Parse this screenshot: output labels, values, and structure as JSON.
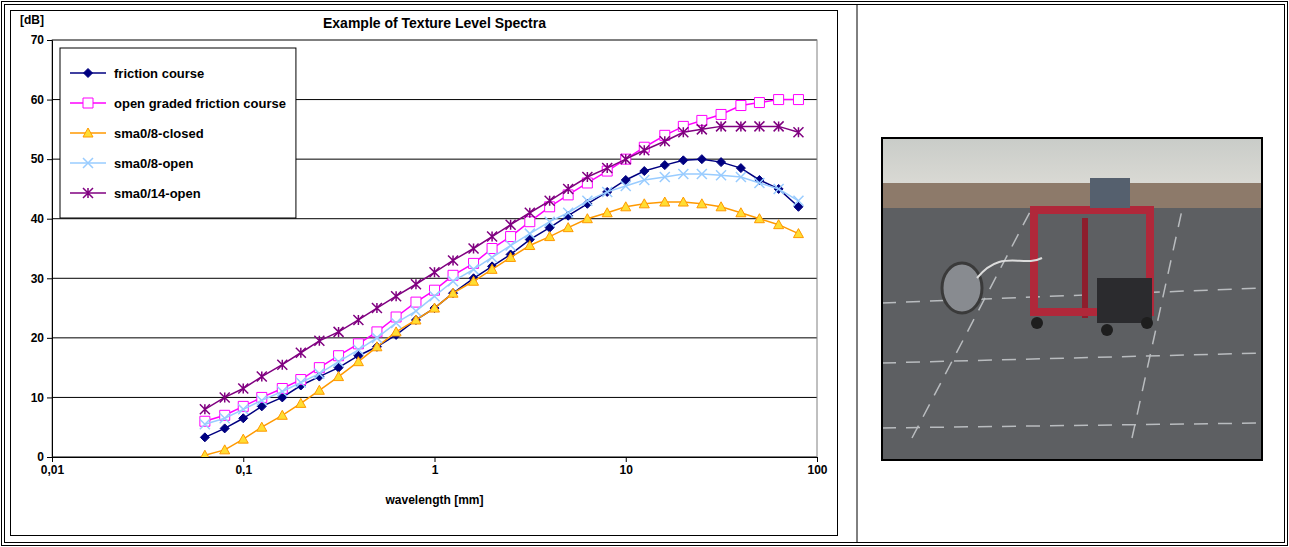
{
  "chart_data": {
    "type": "line",
    "title": "Example of Texture Level Spectra",
    "y_label": "[dB]",
    "x_label": "wavelength [mm]",
    "log": "x",
    "grid": true,
    "legend": "top-left",
    "xlim": [
      0.01,
      100
    ],
    "xticks": [
      {
        "value": 0.01,
        "label": "0,01"
      },
      {
        "value": 0.1,
        "label": "0,1"
      },
      1,
      10,
      100
    ],
    "ylim": [
      0,
      70
    ],
    "yticks": [
      0,
      10,
      20,
      30,
      40,
      50,
      60,
      70
    ],
    "x": [
      0.063,
      0.08,
      0.1,
      0.125,
      0.16,
      0.2,
      0.25,
      0.315,
      0.4,
      0.5,
      0.63,
      0.8,
      1,
      1.25,
      1.6,
      2,
      2.5,
      3.15,
      4,
      5,
      6.3,
      8,
      10,
      12.5,
      16,
      20,
      25,
      31.5,
      40,
      50,
      63,
      80
    ],
    "series": [
      {
        "name": "friction course",
        "color": "#000080",
        "marker": "diamond",
        "line_style": "solid",
        "values": [
          3.3,
          4.8,
          6.5,
          8.5,
          10,
          12,
          13.5,
          15,
          17,
          18.5,
          20.5,
          23,
          25,
          27.5,
          30,
          32,
          34,
          36.5,
          38.5,
          40.5,
          42.5,
          44.5,
          46.5,
          48,
          49,
          49.8,
          50,
          49.5,
          48.5,
          46.5,
          45,
          42
        ]
      },
      {
        "name": "open graded friction course",
        "color": "#ff00ff",
        "marker": "square-open",
        "line_style": "solid",
        "values": [
          6,
          7,
          8.5,
          10,
          11.5,
          13,
          15,
          17,
          19,
          21,
          23.5,
          26,
          28,
          30.5,
          32.5,
          35,
          37,
          39.5,
          42,
          44,
          46,
          48,
          50,
          52,
          54,
          55.5,
          56.5,
          57.5,
          59,
          59.5,
          60,
          60
        ]
      },
      {
        "name": "sma0/8-closed",
        "color": "#ff9900",
        "marker": "triangle",
        "line_style": "solid",
        "values": [
          0.3,
          1.2,
          3,
          5,
          7,
          9,
          11.2,
          13.5,
          16,
          18.5,
          21,
          23,
          25,
          27.5,
          29.5,
          31.5,
          33.5,
          35.5,
          37,
          38.5,
          40,
          41,
          42,
          42.5,
          42.8,
          42.8,
          42.5,
          42,
          41,
          40,
          39,
          37.5
        ]
      },
      {
        "name": "sma0/8-open",
        "color": "#99ccff",
        "marker": "x",
        "line_style": "solid",
        "values": [
          5.5,
          6.5,
          8,
          9.5,
          11,
          12.5,
          14,
          16,
          18,
          20,
          22.5,
          24.5,
          27,
          29.5,
          31.5,
          33.5,
          35.5,
          37.5,
          39.5,
          41,
          43,
          44.5,
          45.5,
          46.5,
          47,
          47.5,
          47.5,
          47.3,
          47,
          46,
          45,
          43
        ]
      },
      {
        "name": "sma0/14-open",
        "color": "#800080",
        "marker": "asterisk",
        "line_style": "solid",
        "values": [
          8,
          10,
          11.5,
          13.5,
          15.5,
          17.5,
          19.5,
          21,
          23,
          25,
          27,
          29,
          31,
          33,
          35,
          37,
          39,
          41,
          43,
          45,
          47,
          48.5,
          50,
          51.5,
          53,
          54.5,
          55,
          55.5,
          55.5,
          55.5,
          55.5,
          54.5
        ]
      }
    ]
  }
}
